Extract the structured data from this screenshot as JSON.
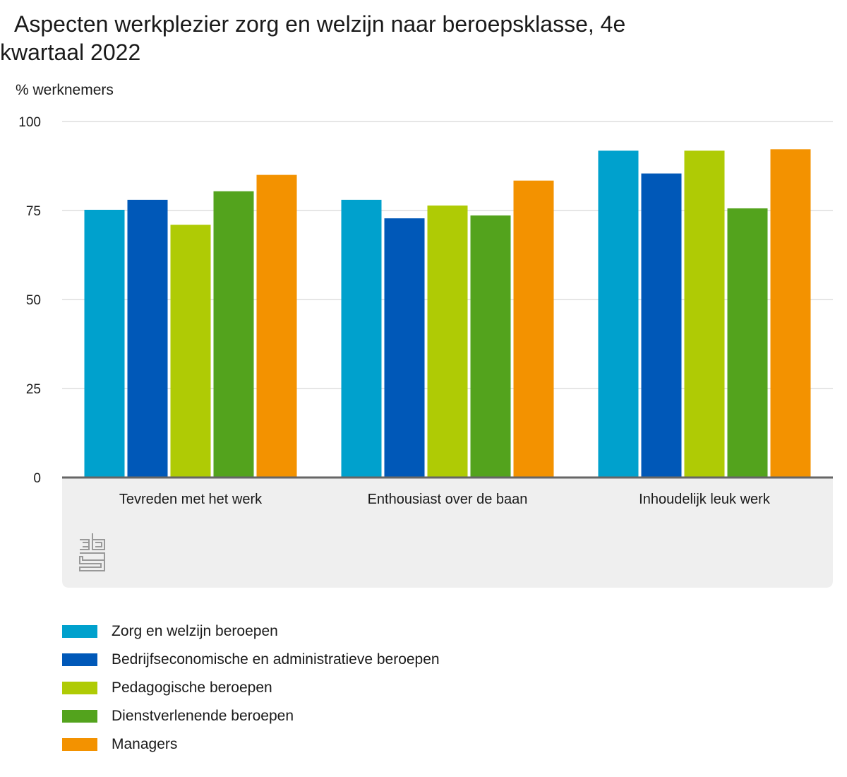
{
  "chart_data": {
    "type": "bar",
    "title": "Aspecten werkplezier zorg en welzijn naar beroepsklasse, 4e kwartaal 2022",
    "ylabel": "% werknemers",
    "xlabel": "",
    "ylim": [
      0,
      100
    ],
    "yticks": [
      0,
      25,
      50,
      75,
      100
    ],
    "grid": true,
    "legend_position": "bottom",
    "categories": [
      "Tevreden met het werk",
      "Enthousiast over de baan",
      "Inhoudelijk leuk werk"
    ],
    "series": [
      {
        "name": "Zorg en welzijn beroepen",
        "color": "#00a1cd",
        "values": [
          75.2,
          78.0,
          91.8
        ]
      },
      {
        "name": "Bedrijfseconomische en administratieve beroepen",
        "color": "#0058b8",
        "values": [
          78.0,
          72.8,
          85.4
        ]
      },
      {
        "name": "Pedagogische beroepen",
        "color": "#afcb05",
        "values": [
          71.0,
          76.4,
          91.8
        ]
      },
      {
        "name": "Dienstverlenende beroepen",
        "color": "#53a31d",
        "values": [
          80.4,
          73.6,
          75.6
        ]
      },
      {
        "name": "Managers",
        "color": "#f39200",
        "values": [
          85.0,
          83.4,
          92.2
        ]
      }
    ]
  },
  "colors": {
    "gridline": "#cccccc",
    "axis": "#666666",
    "footer_background": "#efefef",
    "logo": "#999999"
  },
  "logo_icon": "cbs-logo-icon"
}
